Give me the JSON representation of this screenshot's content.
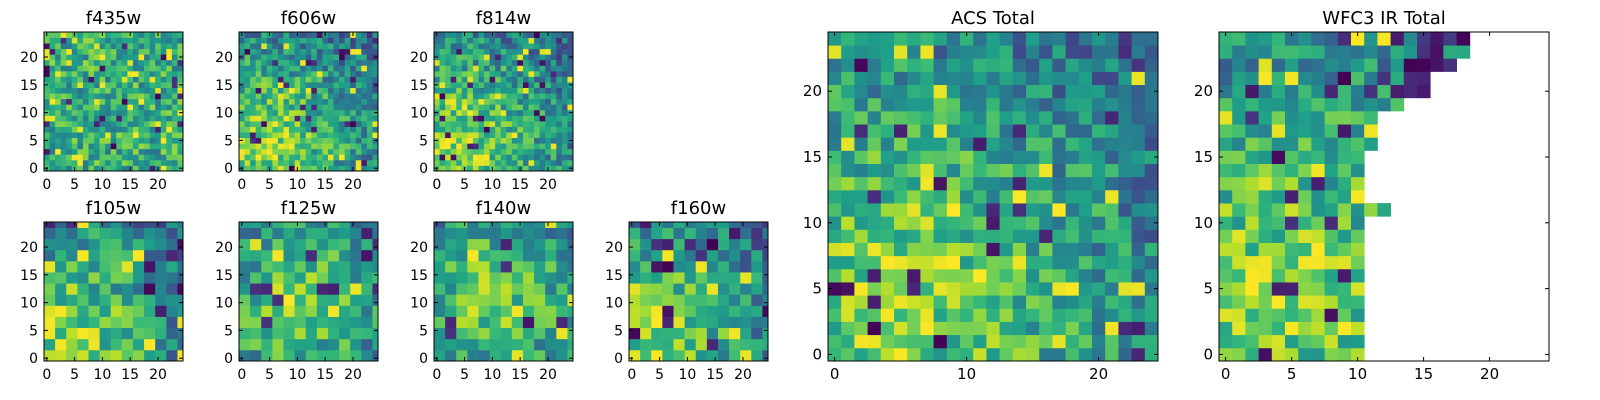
{
  "chart_data": [
    {
      "type": "heatmap",
      "title": "f435w",
      "xlim": [
        0,
        25
      ],
      "ylim": [
        0,
        25
      ],
      "xticks": [
        0,
        5,
        10,
        15,
        20
      ],
      "yticks": [
        0,
        5,
        10,
        15,
        20
      ],
      "pattern": "noisy",
      "fill": "full",
      "cell": 1,
      "colormap": "viridis"
    },
    {
      "type": "heatmap",
      "title": "f606w",
      "xlim": [
        0,
        25
      ],
      "ylim": [
        0,
        25
      ],
      "xticks": [
        0,
        5,
        10,
        15,
        20
      ],
      "yticks": [
        0,
        5,
        10,
        15,
        20
      ],
      "pattern": "bright-lower-left",
      "fill": "full",
      "cell": 1,
      "colormap": "viridis"
    },
    {
      "type": "heatmap",
      "title": "f814w",
      "xlim": [
        0,
        25
      ],
      "ylim": [
        0,
        25
      ],
      "xticks": [
        0,
        5,
        10,
        15,
        20
      ],
      "yticks": [
        0,
        5,
        10,
        15,
        20
      ],
      "pattern": "bright-lower-left",
      "fill": "full",
      "cell": 1,
      "colormap": "viridis"
    },
    {
      "type": "heatmap",
      "title": "f105w",
      "xlim": [
        0,
        25
      ],
      "ylim": [
        0,
        25
      ],
      "xticks": [
        0,
        5,
        10,
        15,
        20
      ],
      "yticks": [
        0,
        5,
        10,
        15,
        20
      ],
      "pattern": "bright-lower-left",
      "fill": "full",
      "cell": 2,
      "colormap": "viridis"
    },
    {
      "type": "heatmap",
      "title": "f125w",
      "xlim": [
        0,
        25
      ],
      "ylim": [
        0,
        25
      ],
      "xticks": [
        0,
        5,
        10,
        15,
        20
      ],
      "yticks": [
        0,
        5,
        10,
        15,
        20
      ],
      "pattern": "bright-center",
      "fill": "full",
      "cell": 2,
      "colormap": "viridis"
    },
    {
      "type": "heatmap",
      "title": "f140w",
      "xlim": [
        0,
        25
      ],
      "ylim": [
        0,
        25
      ],
      "xticks": [
        0,
        5,
        10,
        15,
        20
      ],
      "yticks": [
        0,
        5,
        10,
        15,
        20
      ],
      "pattern": "bright-center",
      "fill": "full",
      "cell": 2,
      "colormap": "viridis"
    },
    {
      "type": "heatmap",
      "title": "f160w",
      "xlim": [
        0,
        25
      ],
      "ylim": [
        0,
        25
      ],
      "xticks": [
        0,
        5,
        10,
        15,
        20
      ],
      "yticks": [
        0,
        5,
        10,
        15,
        20
      ],
      "pattern": "bright-lower-left",
      "fill": "full",
      "cell": 2,
      "colormap": "viridis"
    },
    {
      "type": "heatmap",
      "title": "ACS Total",
      "xlim": [
        0,
        25
      ],
      "ylim": [
        0,
        25
      ],
      "xticks": [
        0,
        10,
        20
      ],
      "yticks": [
        0,
        5,
        10,
        15,
        20
      ],
      "pattern": "bright-lower-left",
      "fill": "full",
      "cell": 1,
      "colormap": "viridis"
    },
    {
      "type": "heatmap",
      "title": "WFC3 IR Total",
      "xlim": [
        0,
        25
      ],
      "ylim": [
        0,
        25
      ],
      "xticks": [
        0,
        5,
        10,
        15,
        20
      ],
      "yticks": [
        0,
        5,
        10,
        15,
        20
      ],
      "pattern": "bright-lower-left",
      "fill": "wfc3-partial",
      "cell": 1,
      "colormap": "viridis",
      "row_extent": [
        11,
        11,
        11,
        11,
        11,
        11,
        11,
        11,
        11,
        11,
        11,
        13,
        11,
        11,
        11,
        11,
        12,
        12,
        12,
        14,
        16,
        16,
        18,
        19,
        19
      ]
    }
  ]
}
